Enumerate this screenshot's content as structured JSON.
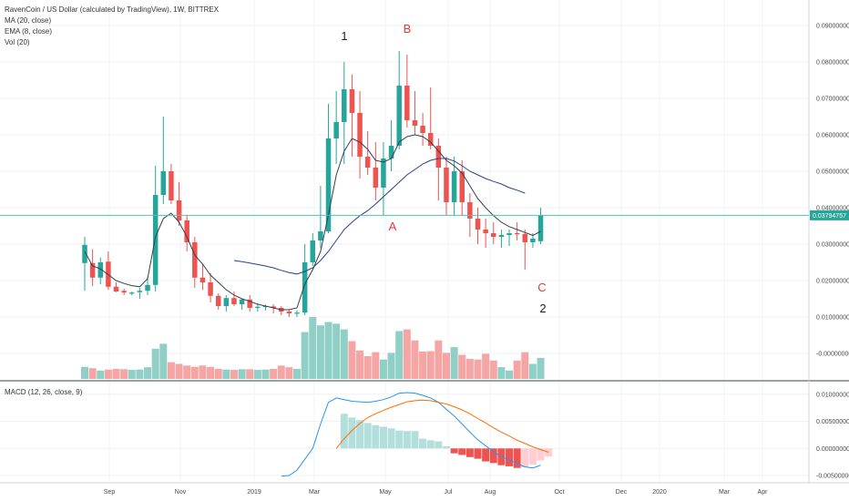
{
  "header": {
    "title": "RavenCoin / US Dollar (calculated by TradingView), 1W, BITTREX",
    "ma_label": "MA (20, close)",
    "ema_label": "EMA (8, close)",
    "vol_label": "Vol (20)",
    "macd_label": "MACD (12, 26, close, 9)"
  },
  "colors": {
    "up": "#26a69a",
    "down": "#ef5350",
    "vol_up": "#8fcfc6",
    "vol_down": "#f5a5a4",
    "ema": "#333f55",
    "ma": "#28418b",
    "price_line": "#57bfb7",
    "macd_line": "#2196f3",
    "signal_line": "#ff6d00",
    "hist_up_strong": "#26a69a",
    "hist_up_weak": "#b2dfdb",
    "hist_down_strong": "#ef5350",
    "hist_down_weak": "#ffcdd2",
    "annotation_black": "#1e1e1e",
    "annotation_red": "#e53935"
  },
  "price_axis": {
    "ticks": [
      "0.09000000",
      "0.08000000",
      "0.07000000",
      "0.06000000",
      "0.05000000",
      "0.04000000",
      "0.03000000",
      "0.02000000",
      "0.01000000",
      "-0.00000000"
    ],
    "last_price_label": "0.03794757"
  },
  "macd_axis": {
    "ticks": [
      "0.01000000",
      "0.00500000",
      "0.00000000",
      "-0.00500000"
    ]
  },
  "time_axis": {
    "labels": [
      "Sep",
      "Nov",
      "2019",
      "Mar",
      "May",
      "Jul",
      "Aug",
      "Oct",
      "Dec",
      "2020",
      "Mar",
      "Apr"
    ]
  },
  "annotations": [
    "1",
    "B",
    "A",
    "C",
    "2"
  ],
  "chart_data": [
    {
      "type": "candlestick",
      "title": "RavenCoin / US Dollar (calculated by TradingView), 1W, BITTREX",
      "ylim": [
        -0.003,
        0.093
      ],
      "x_ticks": [
        "Sep",
        "Nov",
        "2019",
        "Mar",
        "May",
        "Jul",
        "Aug",
        "Oct",
        "Dec",
        "2020",
        "Mar",
        "Apr"
      ],
      "candles": [
        {
          "o": 0.0248,
          "h": 0.032,
          "l": 0.0172,
          "c": 0.0298
        },
        {
          "o": 0.0248,
          "h": 0.0286,
          "l": 0.0185,
          "c": 0.0208
        },
        {
          "o": 0.0208,
          "h": 0.0263,
          "l": 0.019,
          "c": 0.025
        },
        {
          "o": 0.0252,
          "h": 0.028,
          "l": 0.0175,
          "c": 0.0183
        },
        {
          "o": 0.0183,
          "h": 0.0195,
          "l": 0.0168,
          "c": 0.017
        },
        {
          "o": 0.0172,
          "h": 0.0178,
          "l": 0.016,
          "c": 0.0167
        },
        {
          "o": 0.0165,
          "h": 0.017,
          "l": 0.016,
          "c": 0.0167
        },
        {
          "o": 0.0168,
          "h": 0.018,
          "l": 0.015,
          "c": 0.0172
        },
        {
          "o": 0.0172,
          "h": 0.021,
          "l": 0.016,
          "c": 0.0188
        },
        {
          "o": 0.0188,
          "h": 0.0515,
          "l": 0.017,
          "c": 0.0435
        },
        {
          "o": 0.0435,
          "h": 0.065,
          "l": 0.041,
          "c": 0.05
        },
        {
          "o": 0.05,
          "h": 0.052,
          "l": 0.041,
          "c": 0.042
        },
        {
          "o": 0.042,
          "h": 0.047,
          "l": 0.035,
          "c": 0.0365
        },
        {
          "o": 0.0365,
          "h": 0.038,
          "l": 0.028,
          "c": 0.0305
        },
        {
          "o": 0.0305,
          "h": 0.032,
          "l": 0.018,
          "c": 0.0208
        },
        {
          "o": 0.0208,
          "h": 0.0245,
          "l": 0.0175,
          "c": 0.0195
        },
        {
          "o": 0.0195,
          "h": 0.022,
          "l": 0.014,
          "c": 0.0158
        },
        {
          "o": 0.0158,
          "h": 0.0165,
          "l": 0.012,
          "c": 0.013
        },
        {
          "o": 0.013,
          "h": 0.016,
          "l": 0.0115,
          "c": 0.0152
        },
        {
          "o": 0.0152,
          "h": 0.017,
          "l": 0.013,
          "c": 0.0135
        },
        {
          "o": 0.0135,
          "h": 0.015,
          "l": 0.012,
          "c": 0.0148
        },
        {
          "o": 0.0148,
          "h": 0.016,
          "l": 0.0115,
          "c": 0.0125
        },
        {
          "o": 0.0125,
          "h": 0.0138,
          "l": 0.0115,
          "c": 0.0128
        },
        {
          "o": 0.0127,
          "h": 0.0134,
          "l": 0.0118,
          "c": 0.013
        },
        {
          "o": 0.0129,
          "h": 0.0135,
          "l": 0.011,
          "c": 0.0125
        },
        {
          "o": 0.0125,
          "h": 0.013,
          "l": 0.0105,
          "c": 0.0115
        },
        {
          "o": 0.0115,
          "h": 0.012,
          "l": 0.01,
          "c": 0.011
        },
        {
          "o": 0.011,
          "h": 0.0118,
          "l": 0.01,
          "c": 0.0112
        },
        {
          "o": 0.0112,
          "h": 0.03,
          "l": 0.0105,
          "c": 0.025
        },
        {
          "o": 0.025,
          "h": 0.033,
          "l": 0.024,
          "c": 0.031
        },
        {
          "o": 0.031,
          "h": 0.046,
          "l": 0.029,
          "c": 0.0335
        },
        {
          "o": 0.0335,
          "h": 0.0685,
          "l": 0.033,
          "c": 0.059
        },
        {
          "o": 0.059,
          "h": 0.072,
          "l": 0.052,
          "c": 0.0635
        },
        {
          "o": 0.0635,
          "h": 0.08,
          "l": 0.052,
          "c": 0.0725
        },
        {
          "o": 0.0725,
          "h": 0.0765,
          "l": 0.054,
          "c": 0.066
        },
        {
          "o": 0.066,
          "h": 0.072,
          "l": 0.048,
          "c": 0.054
        },
        {
          "o": 0.054,
          "h": 0.061,
          "l": 0.049,
          "c": 0.051
        },
        {
          "o": 0.051,
          "h": 0.058,
          "l": 0.042,
          "c": 0.0455
        },
        {
          "o": 0.0455,
          "h": 0.058,
          "l": 0.038,
          "c": 0.0535
        },
        {
          "o": 0.0535,
          "h": 0.064,
          "l": 0.05,
          "c": 0.057
        },
        {
          "o": 0.057,
          "h": 0.083,
          "l": 0.056,
          "c": 0.0735
        },
        {
          "o": 0.0735,
          "h": 0.082,
          "l": 0.062,
          "c": 0.064
        },
        {
          "o": 0.064,
          "h": 0.072,
          "l": 0.06,
          "c": 0.0625
        },
        {
          "o": 0.0625,
          "h": 0.066,
          "l": 0.057,
          "c": 0.0605
        },
        {
          "o": 0.0605,
          "h": 0.073,
          "l": 0.056,
          "c": 0.057
        },
        {
          "o": 0.057,
          "h": 0.059,
          "l": 0.042,
          "c": 0.051
        },
        {
          "o": 0.051,
          "h": 0.054,
          "l": 0.038,
          "c": 0.0415
        },
        {
          "o": 0.0415,
          "h": 0.054,
          "l": 0.038,
          "c": 0.05
        },
        {
          "o": 0.05,
          "h": 0.053,
          "l": 0.038,
          "c": 0.0415
        },
        {
          "o": 0.0415,
          "h": 0.044,
          "l": 0.032,
          "c": 0.037
        },
        {
          "o": 0.037,
          "h": 0.04,
          "l": 0.03,
          "c": 0.034
        },
        {
          "o": 0.034,
          "h": 0.037,
          "l": 0.029,
          "c": 0.033
        },
        {
          "o": 0.033,
          "h": 0.036,
          "l": 0.03,
          "c": 0.032
        },
        {
          "o": 0.032,
          "h": 0.034,
          "l": 0.029,
          "c": 0.0325
        },
        {
          "o": 0.0325,
          "h": 0.034,
          "l": 0.0295,
          "c": 0.033
        },
        {
          "o": 0.033,
          "h": 0.036,
          "l": 0.031,
          "c": 0.0328
        },
        {
          "o": 0.0328,
          "h": 0.034,
          "l": 0.023,
          "c": 0.0305
        },
        {
          "o": 0.0305,
          "h": 0.033,
          "l": 0.029,
          "c": 0.0315
        },
        {
          "o": 0.0308,
          "h": 0.04,
          "l": 0.03,
          "c": 0.0379
        }
      ],
      "ema8": [
        0.028,
        0.024,
        0.0232,
        0.0216,
        0.02,
        0.0192,
        0.0186,
        0.0183,
        0.0205,
        0.032,
        0.037,
        0.0385,
        0.036,
        0.032,
        0.027,
        0.0245,
        0.0215,
        0.0195,
        0.0175,
        0.016,
        0.015,
        0.0143,
        0.0135,
        0.013,
        0.0125,
        0.012,
        0.012,
        0.0125,
        0.019,
        0.023,
        0.028,
        0.038,
        0.049,
        0.0555,
        0.059,
        0.058,
        0.056,
        0.053,
        0.0525,
        0.0535,
        0.058,
        0.0595,
        0.06,
        0.0595,
        0.058,
        0.0555,
        0.053,
        0.0515,
        0.0495,
        0.046,
        0.0425,
        0.04,
        0.0378,
        0.036,
        0.0348,
        0.034,
        0.0332,
        0.0324,
        0.0335
      ],
      "ma20_start": 19,
      "ma20": [
        0.0255,
        0.0252,
        0.0248,
        0.0244,
        0.024,
        0.0235,
        0.0228,
        0.0222,
        0.0218,
        0.0225,
        0.0235,
        0.0255,
        0.028,
        0.031,
        0.034,
        0.036,
        0.0378,
        0.0392,
        0.041,
        0.043,
        0.045,
        0.047,
        0.049,
        0.0505,
        0.052,
        0.053,
        0.0535,
        0.0535,
        0.0528,
        0.0515,
        0.05,
        0.049,
        0.048,
        0.0472,
        0.0465,
        0.0455,
        0.0448,
        0.044
      ],
      "volume": [
        0.0036,
        0.0032,
        0.0025,
        0.0028,
        0.003,
        0.0029,
        0.0027,
        0.0028,
        0.0035,
        0.009,
        0.0105,
        0.005,
        0.0045,
        0.004,
        0.0036,
        0.004,
        0.0036,
        0.003,
        0.0028,
        0.0027,
        0.0029,
        0.0029,
        0.0027,
        0.0028,
        0.003,
        0.004,
        0.0035,
        0.003,
        0.014,
        0.0185,
        0.016,
        0.017,
        0.0165,
        0.0148,
        0.0113,
        0.0085,
        0.0068,
        0.008,
        0.0058,
        0.0078,
        0.0143,
        0.0148,
        0.0115,
        0.0082,
        0.0083,
        0.0115,
        0.0078,
        0.0095,
        0.0072,
        0.006,
        0.0058,
        0.0075,
        0.0055,
        0.0035,
        0.0025,
        0.0055,
        0.008,
        0.0045,
        0.0063
      ]
    },
    {
      "type": "macd",
      "title": "MACD (12, 26, close, 9)",
      "ylim": [
        -0.006,
        0.0108
      ],
      "x_ticks": [
        "Sep",
        "Nov",
        "2019",
        "Mar",
        "May",
        "Jul",
        "Aug",
        "Oct",
        "Dec",
        "2020",
        "Mar",
        "Apr"
      ],
      "macd_start": 25,
      "macd": [
        -0.0051,
        -0.005,
        -0.004,
        -0.002,
        0.0,
        0.0045,
        0.0085,
        0.0093,
        0.009,
        0.0087,
        0.0086,
        0.0085,
        0.0087,
        0.009,
        0.0095,
        0.0102,
        0.0103,
        0.0102,
        0.0098,
        0.0093,
        0.0085,
        0.0072,
        0.006,
        0.0045,
        0.003,
        0.0016,
        0.0005,
        -0.0006,
        -0.0015,
        -0.0021,
        -0.0028,
        -0.0034,
        -0.0036,
        -0.0031
      ],
      "signal_start": 32,
      "signal": [
        0.0,
        0.0018,
        0.0033,
        0.0046,
        0.0057,
        0.0064,
        0.007,
        0.0076,
        0.0081,
        0.0086,
        0.0088,
        0.0089,
        0.0088,
        0.0085,
        0.0082,
        0.0077,
        0.0071,
        0.0064,
        0.0055,
        0.0047,
        0.0038,
        0.003,
        0.0023,
        0.0015,
        0.0009,
        0.0003,
        -0.0002,
        -0.0007
      ],
      "histogram_start": 33,
      "histogram": [
        0.0064,
        0.0057,
        0.0052,
        0.0047,
        0.0043,
        0.004,
        0.0037,
        0.0033,
        0.0032,
        0.0032,
        0.0018,
        0.0015,
        0.0013,
        0.0004,
        -0.0009,
        -0.0012,
        -0.0016,
        -0.0019,
        -0.0024,
        -0.0027,
        -0.0031,
        -0.0033,
        -0.0036,
        -0.0035,
        -0.003,
        -0.0022,
        -0.0015
      ]
    }
  ]
}
